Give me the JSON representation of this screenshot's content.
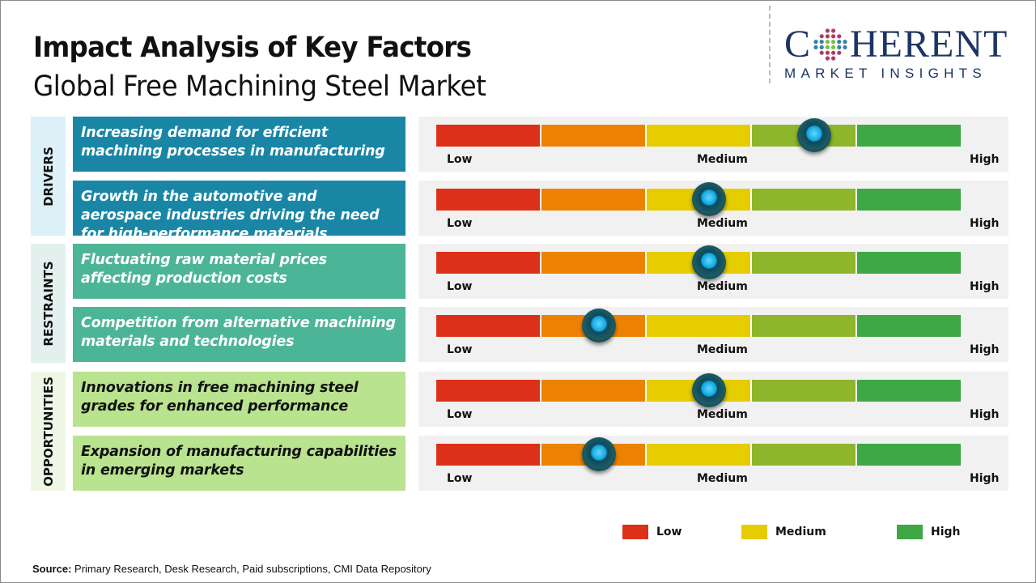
{
  "header": {
    "title": "Impact Analysis of Key Factors",
    "subtitle": "Global Free Machining Steel Market"
  },
  "logo": {
    "top": "COHERENT",
    "bottom": "MARKET INSIGHTS"
  },
  "scale_labels": {
    "low": "Low",
    "medium": "Medium",
    "high": "High"
  },
  "gauge_colors": [
    "#dd3019",
    "#ec8200",
    "#e6cc00",
    "#8fb52a",
    "#3ea845"
  ],
  "categories": [
    {
      "label": "DRIVERS",
      "side_color": "#dcf0f8",
      "box_color": "#1a86a6"
    },
    {
      "label": "RESTRAINTS",
      "side_color": "#e3f0ee",
      "box_color": "#4db597"
    },
    {
      "label": "OPPORTUNITIES",
      "side_color": "#eef7e6",
      "box_color": "#b9e38e"
    }
  ],
  "factors": [
    {
      "category": 0,
      "text": "Increasing demand for efficient machining processes in manufacturing",
      "impact_fraction": 0.72
    },
    {
      "category": 0,
      "text": "Growth in the automotive and aerospace industries driving the need for high-performance materials",
      "impact_fraction": 0.52
    },
    {
      "category": 1,
      "text": "Fluctuating raw material prices affecting production costs",
      "impact_fraction": 0.52
    },
    {
      "category": 1,
      "text": "Competition from alternative machining materials and technologies",
      "impact_fraction": 0.31
    },
    {
      "category": 2,
      "text": "Innovations in free machining steel grades for enhanced performance",
      "impact_fraction": 0.52
    },
    {
      "category": 2,
      "text": "Expansion of manufacturing capabilities in emerging markets",
      "impact_fraction": 0.31
    }
  ],
  "legend": [
    {
      "label": "Low",
      "color": "#dd3019"
    },
    {
      "label": "Medium",
      "color": "#e6cc00"
    },
    {
      "label": "High",
      "color": "#3ea845"
    }
  ],
  "source": {
    "label": "Source:",
    "text": " Primary Research, Desk Research, Paid subscriptions, CMI Data Repository"
  }
}
